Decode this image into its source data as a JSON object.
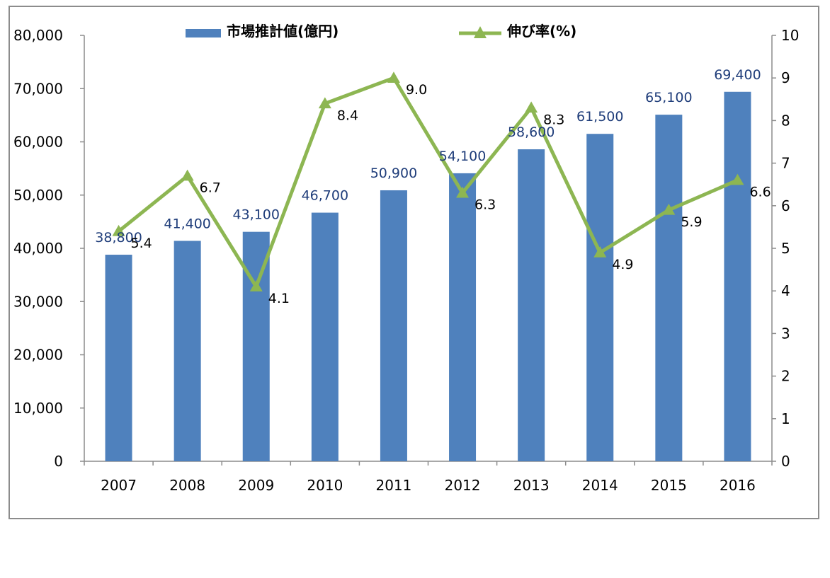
{
  "chart_data": {
    "type": "bar",
    "categories": [
      "2007",
      "2008",
      "2009",
      "2010",
      "2011",
      "2012",
      "2013",
      "2014",
      "2015",
      "2016"
    ],
    "series": [
      {
        "name": "市場推計値(億円)",
        "type": "bar",
        "axis": "left",
        "color": "#4f81bd",
        "values": [
          38800,
          41400,
          43100,
          46700,
          50900,
          54100,
          58600,
          61500,
          65100,
          69400
        ],
        "labels": [
          "38,800",
          "41,400",
          "43,100",
          "46,700",
          "50,900",
          "54,100",
          "58,600",
          "61,500",
          "65,100",
          "69,400"
        ]
      },
      {
        "name": "伸び率(%)",
        "type": "line",
        "axis": "right",
        "color": "#8db652",
        "marker": "triangle",
        "values": [
          5.4,
          6.7,
          4.1,
          8.4,
          9.0,
          6.3,
          8.3,
          4.9,
          5.9,
          6.6
        ],
        "labels": [
          "5.4",
          "6.7",
          "4.1",
          "8.4",
          "9.0",
          "6.3",
          "8.3",
          "4.9",
          "5.9",
          "6.6"
        ]
      }
    ],
    "y_left": {
      "ylim": [
        0,
        80000
      ],
      "ticks": [
        0,
        10000,
        20000,
        30000,
        40000,
        50000,
        60000,
        70000,
        80000
      ],
      "tick_labels": [
        "0",
        "10,000",
        "20,000",
        "30,000",
        "40,000",
        "50,000",
        "60,000",
        "70,000",
        "80,000"
      ]
    },
    "y_right": {
      "ylim": [
        0,
        10
      ],
      "ticks": [
        0,
        1,
        2,
        3,
        4,
        5,
        6,
        7,
        8,
        9,
        10
      ],
      "tick_labels": [
        "0",
        "1",
        "2",
        "3",
        "4",
        "5",
        "6",
        "7",
        "8",
        "9",
        "10"
      ]
    },
    "title": "",
    "xlabel": "",
    "ylabel": "",
    "grid": false,
    "legend": {
      "placement": "top",
      "entries": [
        "市場推計値(億円)",
        "伸び率(%)"
      ]
    }
  }
}
